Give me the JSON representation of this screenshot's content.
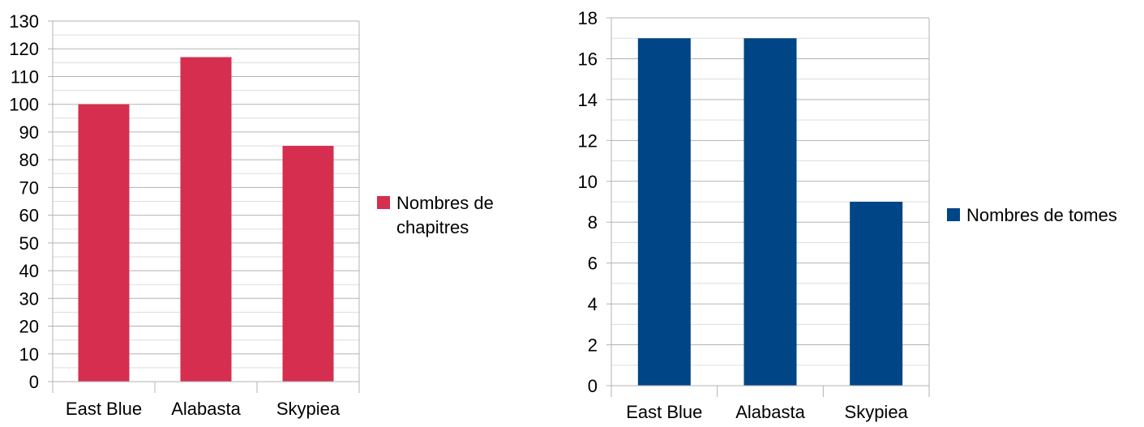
{
  "chart_data": [
    {
      "type": "bar",
      "categories": [
        "East Blue",
        "Alabasta",
        "Skypiea"
      ],
      "series": [
        {
          "name": "Nombres de chapitres",
          "values": [
            100,
            117,
            85
          ],
          "color": "#d62e4e"
        }
      ],
      "legend_lines": [
        "Nombres de",
        "chapitres"
      ],
      "ylim": [
        0,
        130
      ],
      "ytick_step": 10,
      "minor_ticks_per_major": 2,
      "grid": true,
      "legend": "right",
      "title": "",
      "xlabel": "",
      "ylabel": ""
    },
    {
      "type": "bar",
      "categories": [
        "East Blue",
        "Alabasta",
        "Skypiea"
      ],
      "series": [
        {
          "name": "Nombres de tomes",
          "values": [
            17,
            17,
            9
          ],
          "color": "#004586"
        }
      ],
      "legend_lines": [
        "Nombres de tomes"
      ],
      "ylim": [
        0,
        18
      ],
      "ytick_step": 2,
      "minor_ticks_per_major": 2,
      "grid": true,
      "legend": "right",
      "title": "",
      "xlabel": "",
      "ylabel": ""
    }
  ]
}
